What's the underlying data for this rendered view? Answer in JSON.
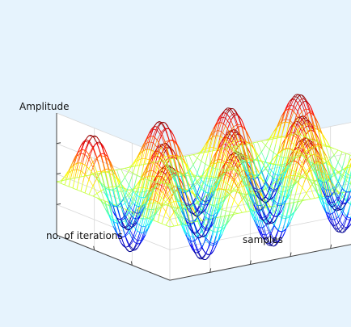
{
  "chart_data": {
    "type": "surface",
    "title": "",
    "xlabel": "samples",
    "ylabel": "no. of iterations",
    "zlabel": "Amplitude",
    "x": {
      "label": "samples",
      "range": [
        0,
        1
      ],
      "ticks": []
    },
    "y": {
      "label": "no. of iterations",
      "range": [
        0,
        1
      ],
      "ticks": []
    },
    "z": {
      "label": "Amplitude",
      "range": [
        -1,
        1
      ],
      "ticks": []
    },
    "grid": true,
    "colormap": "jet",
    "colormap_stops": [
      "#00007f",
      "#0000ff",
      "#00ffff",
      "#7fff7f",
      "#ffff00",
      "#ff7f00",
      "#ff0000",
      "#7f0000"
    ],
    "surface": {
      "function": "sin(2*pi*x_periods*x) * sin(2*pi*y_periods*y)",
      "x_periods": 3.5,
      "y_periods": 1.5,
      "mesh_x_count": 120,
      "mesh_y_count": 28
    }
  }
}
